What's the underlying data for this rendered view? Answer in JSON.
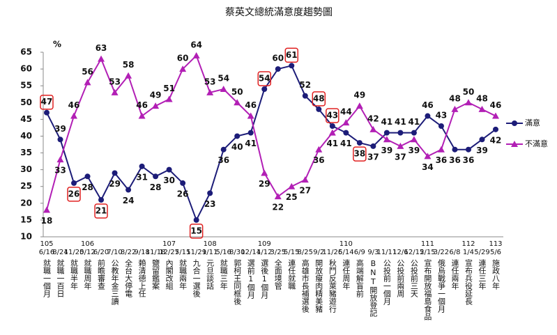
{
  "chart_data": {
    "type": "line",
    "title": "蔡英文總統滿意度趨勢圖",
    "y_label": "%",
    "years": [
      "105",
      null,
      null,
      "106",
      null,
      null,
      null,
      null,
      null,
      "107",
      null,
      null,
      "108",
      null,
      null,
      null,
      "109",
      null,
      null,
      null,
      null,
      null,
      "110",
      null,
      null,
      null,
      null,
      null,
      "111",
      null,
      null,
      "112",
      null,
      "113"
    ],
    "categories": [
      "6/16",
      "8/24",
      "11/20",
      "5/12",
      "6/20",
      "7/10",
      "8/22",
      "9/18",
      "11/18",
      "12/27",
      "5/15",
      "11/29",
      "1/11",
      "5/16",
      "8/30",
      "12/14",
      "1/12",
      "3/25",
      "5/15",
      "8/25",
      "9/2",
      "11/26",
      "5/14",
      "6/9",
      "9/3",
      "11/11",
      "12/6",
      "12/15",
      "2/15",
      "3/22",
      "6/8",
      "1/4",
      "5/29",
      "5/6"
    ],
    "events": [
      "就職一個月",
      "就職一百日",
      "就職半年",
      "就職周年",
      "前瞻審查",
      "公教年金三讀",
      "全台大停電",
      "賴清德上任",
      "鹽留鑑案",
      "內閣改組",
      "就職兩年",
      "九合一選後",
      "元旦談話",
      "就職三年",
      "郭柯王同框後",
      "選前1個月",
      "選後1個月",
      "全面境管",
      "連任就職",
      "高雄市長補選後",
      "開放瘦肉精美豬",
      "秋鬥反萊豬遊行",
      "連任周年",
      "高端解盲前",
      "BNT開放登記",
      "公投前一個月",
      "公投前兩周",
      "公投前三天",
      "宣布開放福島食品",
      "俄烏戰爭一個月",
      "連任兩年",
      "宣布兵役延長",
      "連任三年",
      "施政八年"
    ],
    "series": [
      {
        "name": "滿意",
        "color": "#1c1c78",
        "marker": "circle",
        "values": [
          47,
          39,
          26,
          28,
          21,
          29,
          24,
          31,
          28,
          30,
          26,
          15,
          23,
          36,
          40,
          41,
          54,
          60,
          61,
          52,
          48,
          43,
          41,
          38,
          37,
          41,
          41,
          41,
          46,
          43,
          36,
          36,
          39,
          42
        ],
        "boxed": [
          0,
          2,
          4,
          11,
          16,
          18,
          20,
          21,
          23
        ]
      },
      {
        "name": "不滿意",
        "color": "#b21fb5",
        "marker": "triangle",
        "values": [
          18,
          33,
          46,
          56,
          63,
          53,
          58,
          46,
          49,
          51,
          60,
          64,
          53,
          54,
          50,
          46,
          29,
          22,
          25,
          27,
          36,
          41,
          44,
          49,
          42,
          39,
          37,
          39,
          34,
          36,
          48,
          50,
          48,
          46
        ]
      }
    ],
    "box_color": "#e02020",
    "ylim": [
      10,
      65
    ],
    "yticks": [
      10,
      15,
      20,
      25,
      30,
      35,
      40,
      45,
      50,
      55,
      60,
      65
    ],
    "legend": "right"
  }
}
